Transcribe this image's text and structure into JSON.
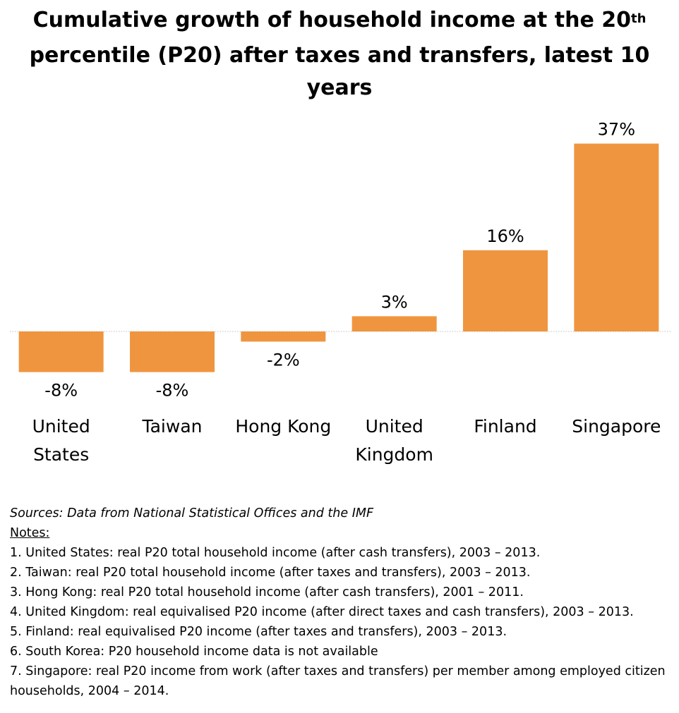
{
  "title": {
    "line1_main": "Cumulative growth of household income at the 20",
    "line1_sup": "th",
    "line2": "percentile (P20) after taxes and transfers, latest 10 years"
  },
  "chart_data": {
    "type": "bar",
    "categories": [
      [
        "United",
        "States"
      ],
      [
        "Taiwan"
      ],
      [
        "Hong Kong"
      ],
      [
        "United",
        "Kingdom"
      ],
      [
        "Finland"
      ],
      [
        "Singapore"
      ]
    ],
    "values": [
      -8,
      -8,
      -2,
      3,
      16,
      37
    ],
    "value_labels": [
      "-8%",
      "-8%",
      "-2%",
      "3%",
      "16%",
      "37%"
    ],
    "bar_color": "#F0953F",
    "zero_line": "dotted",
    "grid": false,
    "legend": "none",
    "ylim": [
      -8,
      37
    ]
  },
  "footer": {
    "sources": "Sources: Data from National Statistical Offices and the IMF",
    "notes_heading": "Notes:",
    "notes": [
      "1. United States: real P20 total household income (after cash transfers), 2003 – 2013.",
      "2. Taiwan: real P20 total household income (after taxes and transfers), 2003 – 2013.",
      "3. Hong Kong: real P20 total household income (after cash transfers), 2001 – 2011.",
      "4. United Kingdom: real equivalised P20 income (after direct taxes and cash transfers), 2003 – 2013.",
      "5. Finland: real equivalised P20 income (after taxes and transfers), 2003 – 2013.",
      "6. South Korea: P20 household income data is not available",
      "7. Singapore: real P20 income from work (after taxes and transfers) per member among employed citizen households, 2004 – 2014."
    ]
  }
}
